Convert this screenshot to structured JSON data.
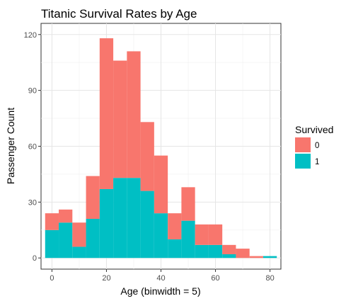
{
  "chart_data": {
    "type": "bar",
    "stacked": true,
    "title": "Titanic Survival Rates by Age",
    "xlabel": "Age (binwidth = 5)",
    "ylabel": "Passenger Count",
    "xlim": [
      -4,
      84
    ],
    "ylim": [
      -6,
      126
    ],
    "x_ticks": [
      0,
      20,
      40,
      60,
      80
    ],
    "x_tick_labels": [
      "0",
      "20",
      "40",
      "60",
      "80"
    ],
    "y_ticks": [
      0,
      30,
      60,
      90,
      120
    ],
    "y_tick_labels": [
      "0",
      "30",
      "60",
      "90",
      "120"
    ],
    "grid": true,
    "binwidth": 5,
    "bin_centers": [
      0,
      5,
      10,
      15,
      20,
      25,
      30,
      35,
      40,
      45,
      50,
      55,
      60,
      65,
      70,
      75,
      80
    ],
    "series": [
      {
        "name": "0",
        "color": "#F8766D",
        "values": [
          9,
          7,
          13,
          23,
          81,
          63,
          68,
          37,
          31,
          14,
          18,
          11,
          11,
          5,
          5,
          1,
          0
        ]
      },
      {
        "name": "1",
        "color": "#00BFC4",
        "values": [
          15,
          19,
          6,
          21,
          37,
          43,
          43,
          36,
          24,
          10,
          20,
          7,
          7,
          2,
          0,
          0,
          1
        ]
      }
    ],
    "legend": {
      "title": "Survived",
      "position": "right"
    }
  }
}
